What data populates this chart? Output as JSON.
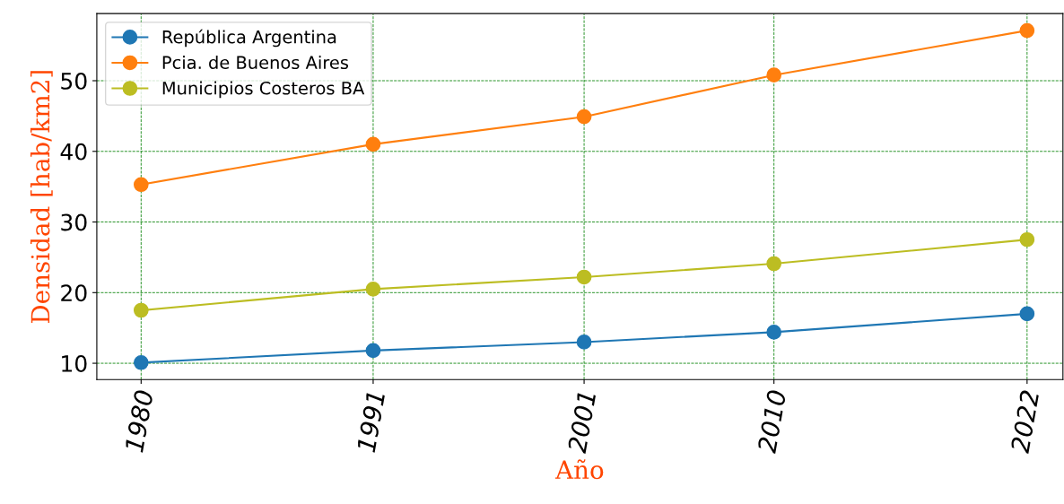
{
  "chart_data": {
    "type": "line",
    "xlabel": "Año",
    "ylabel": "Densidad [hab/km2]",
    "x": [
      1980,
      1991,
      2001,
      2010,
      2022
    ],
    "series": [
      {
        "name": "República Argentina",
        "color": "#1f77b4",
        "values": [
          10.1,
          11.8,
          13.0,
          14.4,
          17.0
        ]
      },
      {
        "name": "Pcia. de Buenos Aires",
        "color": "#ff7f0e",
        "values": [
          35.3,
          41.0,
          44.9,
          50.8,
          57.1
        ]
      },
      {
        "name": "Municipios Costeros BA",
        "color": "#bcbd22",
        "values": [
          17.5,
          20.5,
          22.2,
          24.1,
          27.5
        ]
      }
    ],
    "xlim": [
      1977.9,
      2023.7
    ],
    "ylim": [
      7.7,
      59.5
    ],
    "xticks": [
      1980,
      1991,
      2001,
      2010,
      2022
    ],
    "yticks": [
      10,
      20,
      30,
      40,
      50
    ],
    "grid": true,
    "legend": "top left",
    "marker": "circle",
    "line_style": "solid"
  }
}
